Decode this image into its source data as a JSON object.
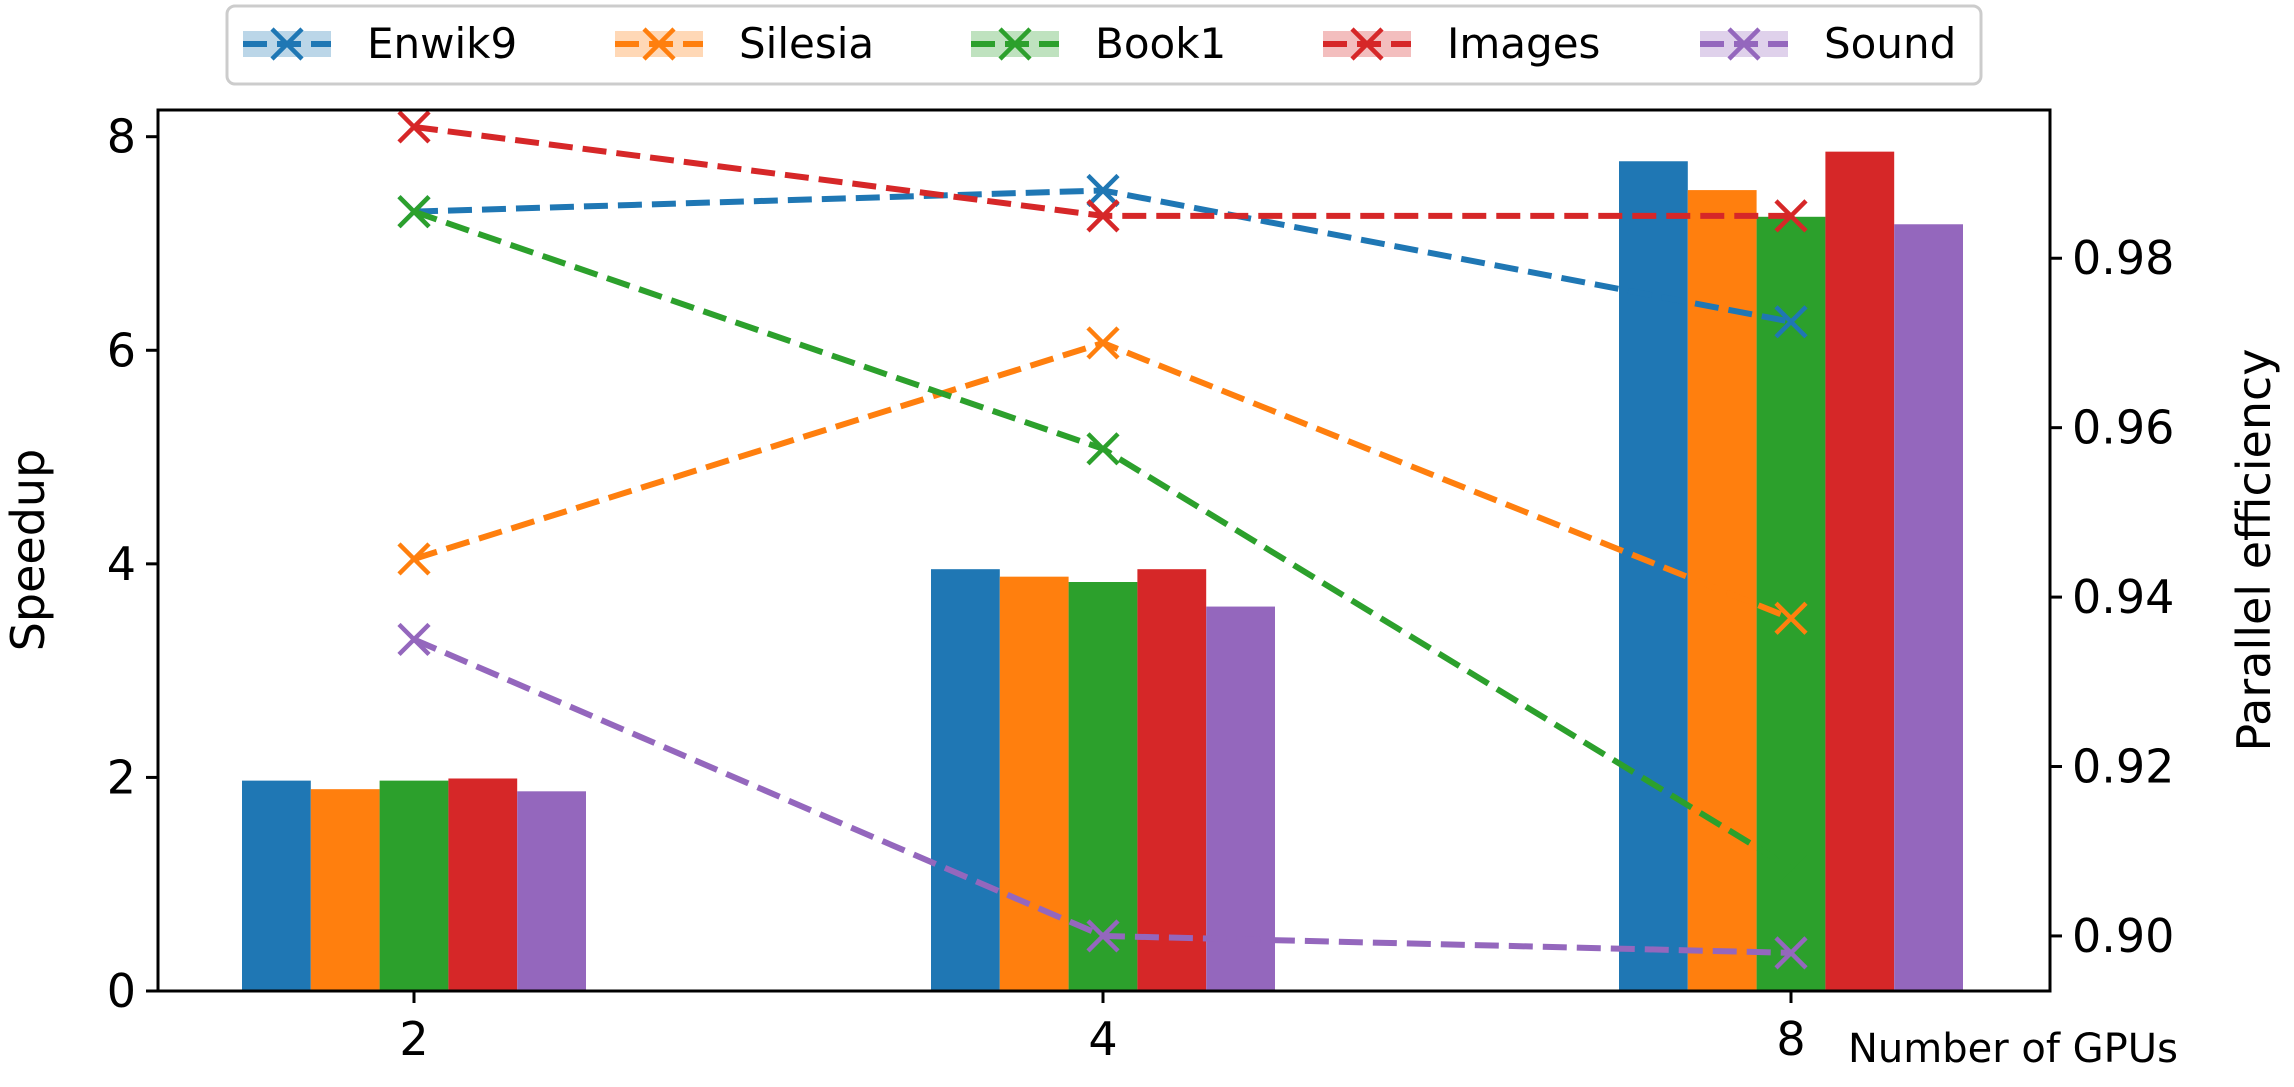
{
  "chart_data": {
    "type": "bar",
    "categories": [
      "2",
      "4",
      "8"
    ],
    "xlabel": "Number of GPUs",
    "ylabel": "Speedup",
    "y2label": "Parallel efficiency",
    "ylim": [
      0,
      8.25
    ],
    "y2lim": [
      0.8935,
      0.9975
    ],
    "yticks": [
      0,
      2,
      4,
      6,
      8
    ],
    "y2ticks": [
      0.9,
      0.92,
      0.94,
      0.96,
      0.98
    ],
    "grid": false,
    "legend_position": "top-center",
    "series": [
      {
        "name": "Enwik9",
        "color": "#1f77b4",
        "speedup": [
          1.97,
          3.95,
          7.77
        ],
        "efficiency": [
          0.9855,
          0.988,
          0.9725
        ]
      },
      {
        "name": "Silesia",
        "color": "#ff7f0e",
        "speedup": [
          1.89,
          3.88,
          7.5
        ],
        "efficiency": [
          0.9445,
          0.97,
          0.9375
        ]
      },
      {
        "name": "Book1",
        "color": "#2ca02c",
        "speedup": [
          1.97,
          3.83,
          7.25
        ],
        "efficiency": [
          0.9855,
          0.9575,
          0.908
        ]
      },
      {
        "name": "Images",
        "color": "#d62728",
        "speedup": [
          1.99,
          3.95,
          7.86
        ],
        "efficiency": [
          0.9955,
          0.985,
          0.985
        ]
      },
      {
        "name": "Sound",
        "color": "#9467bd",
        "speedup": [
          1.87,
          3.6,
          7.18
        ],
        "efficiency": [
          0.935,
          0.9,
          0.898
        ]
      }
    ]
  }
}
